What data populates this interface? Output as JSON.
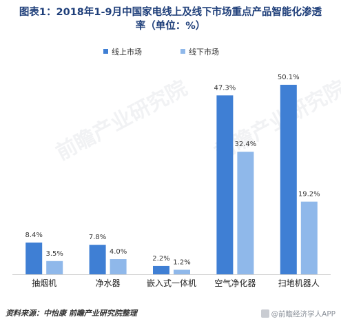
{
  "title_lines": [
    "图表1：2018年1-9月中国家电线上及线下市场重点产品智能化渗透",
    "率（单位：%）"
  ],
  "source_text": "资料来源：中怡康   前瞻产业研究院整理",
  "brand_text": "@前瞻经济学人APP",
  "watermark_text": "前瞻产业研究院",
  "colors": {
    "online": "#3f7fd4",
    "offline": "#8fb8ea",
    "title": "#1f3f7a",
    "axis": "#d0d0d0"
  },
  "chart_data": {
    "type": "bar",
    "categories": [
      "抽烟机",
      "净水器",
      "嵌入式一体机",
      "空气净化器",
      "扫地机器人"
    ],
    "series": [
      {
        "name": "线上市场",
        "values": [
          8.4,
          7.8,
          2.2,
          47.3,
          50.1
        ],
        "labels": [
          "8.4%",
          "7.8%",
          "2.2%",
          "47.3%",
          "50.1%"
        ]
      },
      {
        "name": "线下市场",
        "values": [
          3.5,
          4.0,
          1.2,
          32.4,
          19.2
        ],
        "labels": [
          "3.5%",
          "4.0%",
          "1.2%",
          "32.4%",
          "19.2%"
        ]
      }
    ],
    "ylim": [
      0,
      50.1
    ],
    "legend_position": "top-center",
    "grid": false
  }
}
